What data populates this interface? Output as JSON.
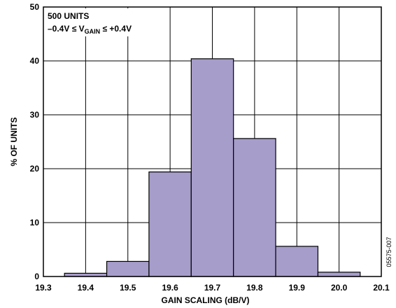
{
  "chart_data": {
    "type": "bar",
    "title": "",
    "xlabel": "GAIN SCALING (dB/V)",
    "ylabel": "% OF UNITS",
    "x_ticks": [
      "19.3",
      "19.4",
      "19.5",
      "19.6",
      "19.7",
      "19.8",
      "19.9",
      "20.0",
      "20.1"
    ],
    "y_ticks": [
      "0",
      "10",
      "20",
      "30",
      "40",
      "50"
    ],
    "xlim": [
      19.3,
      20.1
    ],
    "ylim": [
      0,
      50
    ],
    "bin_width": 0.1,
    "bins": [
      {
        "x": 19.3,
        "value": 0
      },
      {
        "x": 19.4,
        "value": 0.6
      },
      {
        "x": 19.5,
        "value": 2.8
      },
      {
        "x": 19.6,
        "value": 19.4
      },
      {
        "x": 19.7,
        "value": 40.4
      },
      {
        "x": 19.8,
        "value": 25.6
      },
      {
        "x": 19.9,
        "value": 5.6
      },
      {
        "x": 20.0,
        "value": 0.8
      },
      {
        "x": 20.1,
        "value": 0
      }
    ],
    "grid": true,
    "bar_color": "#a79dcb",
    "annotation": {
      "line1": "500 UNITS",
      "line2_prefix": "–0.4V ≤ V",
      "line2_sub": "GAIN",
      "line2_suffix": " ≤ +0.4V"
    },
    "figure_id": "05575-007"
  }
}
